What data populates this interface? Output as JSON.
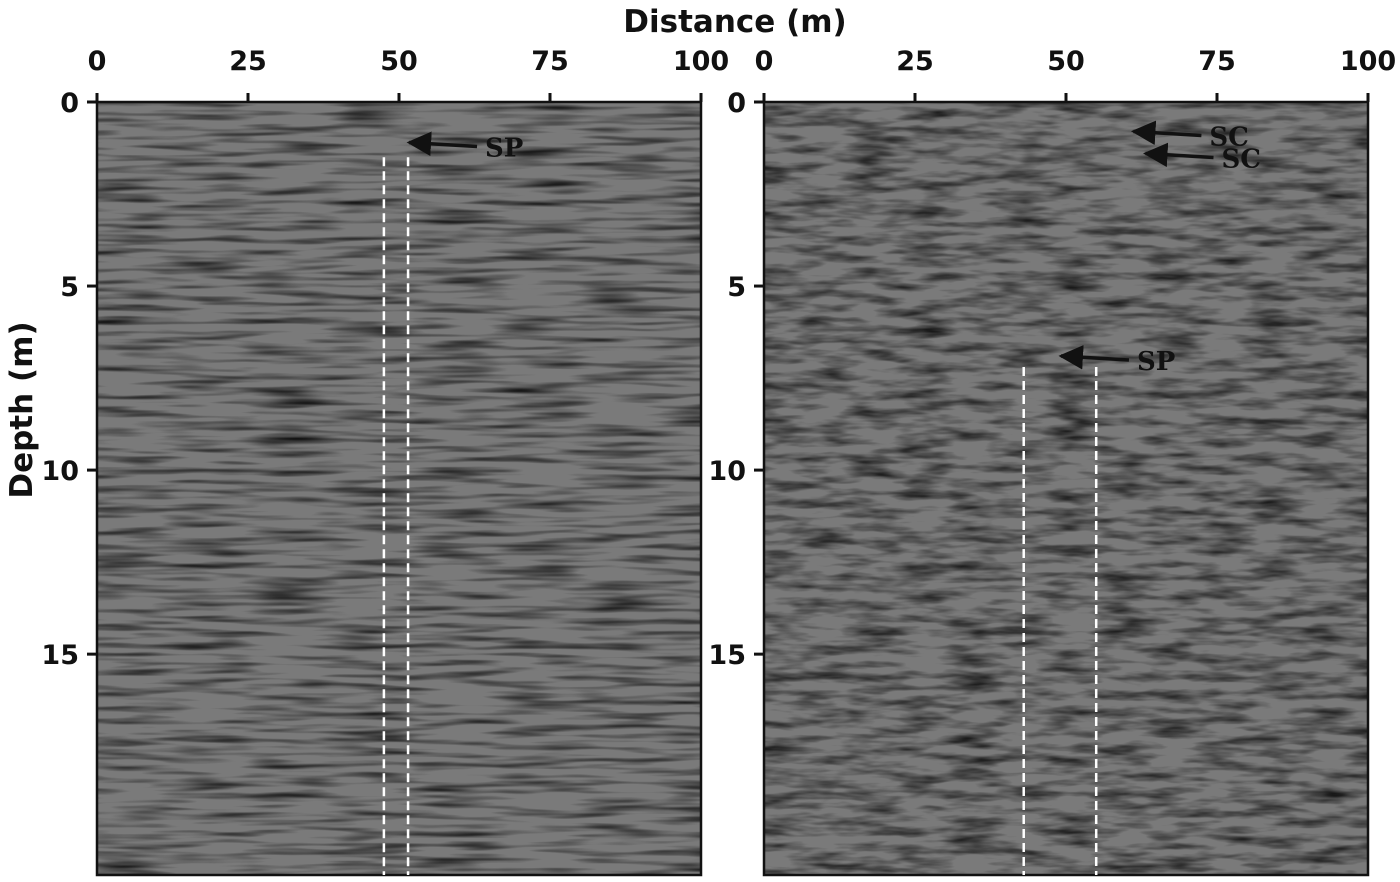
{
  "figure": {
    "x_axis_label": "Distance (m)",
    "y_axis_label": "Depth (m)",
    "x_range": [
      0,
      100
    ],
    "y_range": [
      0,
      21
    ],
    "x_ticks": [
      0,
      25,
      50,
      75,
      100
    ],
    "y_ticks": [
      0,
      5,
      10,
      15
    ],
    "x_tick_labels": [
      "0",
      "25",
      "50",
      "75",
      "100"
    ],
    "y_tick_labels": [
      "0",
      "5",
      "10",
      "15"
    ]
  },
  "panels": [
    {
      "name": "left-profile",
      "annotations": [
        {
          "label": "SP",
          "points_to": {
            "distance": 51,
            "depth": 1.1
          }
        }
      ],
      "dashed_lines": [
        {
          "distance": 47.5,
          "depth_start": 1.5,
          "depth_end": 21
        },
        {
          "distance": 51.5,
          "depth_start": 1.5,
          "depth_end": 21
        }
      ]
    },
    {
      "name": "right-profile",
      "annotations": [
        {
          "label": "SC",
          "points_to": {
            "distance": 60.5,
            "depth": 0.8
          }
        },
        {
          "label": "SC",
          "points_to": {
            "distance": 62.5,
            "depth": 1.4
          }
        },
        {
          "label": "SP",
          "points_to": {
            "distance": 48.5,
            "depth": 6.9
          }
        }
      ],
      "dashed_lines": [
        {
          "distance": 43,
          "depth_start": 7.2,
          "depth_end": 21
        },
        {
          "distance": 55,
          "depth_start": 7.2,
          "depth_end": 21
        }
      ]
    }
  ],
  "colors": {
    "radargram_background": "#7a7a7a",
    "annotation": "#111111",
    "dashed_line": "#ffffff"
  }
}
